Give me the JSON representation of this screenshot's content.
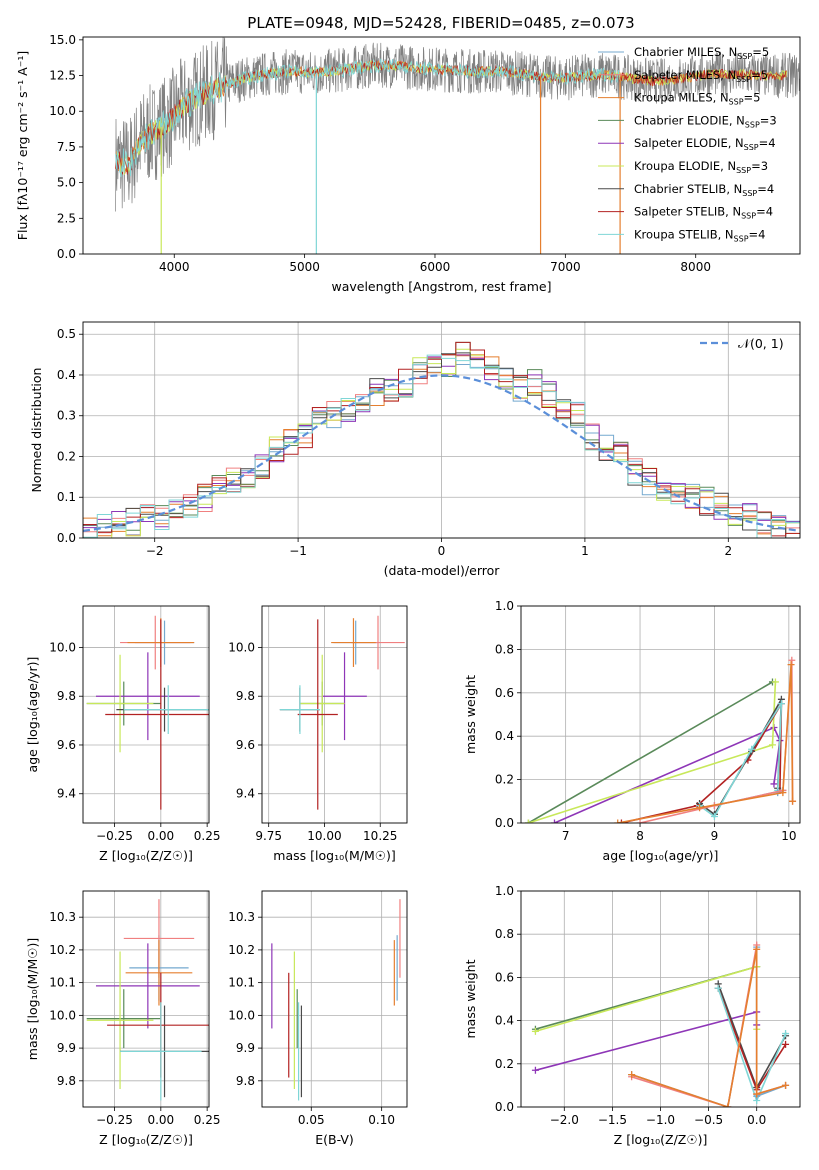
{
  "figure_title": "PLATE=0948, MJD=52428, FIBERID=0485, z=0.073",
  "colors": {
    "Chabrier MILES": "#74a9cf",
    "Salpeter MILES": "#f08080",
    "Kroupa MILES": "#e57f2f",
    "Chabrier ELODIE": "#5a8a5a",
    "Salpeter ELODIE": "#8e36b7",
    "Kroupa ELODIE": "#c8e85a",
    "Chabrier STELIB": "#4a4a4a",
    "Salpeter STELIB": "#b22222",
    "Kroupa STELIB": "#7fd6d6",
    "normal_curve": "#5b8fd9",
    "data_spectrum": "#808080"
  },
  "chart_data": [
    {
      "id": "spectrum",
      "type": "line",
      "title": "PLATE=0948, MJD=52428, FIBERID=0485, z=0.073",
      "xlabel": "wavelength [Angstrom, rest frame]",
      "ylabel": "Flux [fλ10⁻¹⁷ erg cm⁻² s⁻¹ A⁻¹]",
      "xlim": [
        3300,
        8800
      ],
      "ylim": [
        0,
        15.2
      ],
      "xticks": [
        4000,
        5000,
        6000,
        7000,
        8000
      ],
      "yticks": [
        0.0,
        2.5,
        5.0,
        7.5,
        10.0,
        12.5,
        15.0
      ],
      "yticklabels": [
        "0.0",
        "2.5",
        "5.0",
        "7.5",
        "10.0",
        "12.5",
        "15.0"
      ],
      "grid": false,
      "legend_position": "top-right",
      "legend": [
        {
          "model": "Chabrier MILES",
          "label": "Chabrier MILES, N",
          "sub": "SSP",
          "tail": "=5"
        },
        {
          "model": "Salpeter MILES",
          "label": "Salpeter MILES, N",
          "sub": "SSP",
          "tail": "=5"
        },
        {
          "model": "Kroupa MILES",
          "label": "Kroupa MILES, N",
          "sub": "SSP",
          "tail": "=5"
        },
        {
          "model": "Chabrier ELODIE",
          "label": "Chabrier ELODIE, N",
          "sub": "SSP",
          "tail": "=3"
        },
        {
          "model": "Salpeter ELODIE",
          "label": "Salpeter ELODIE, N",
          "sub": "SSP",
          "tail": "=4"
        },
        {
          "model": "Kroupa ELODIE",
          "label": "Kroupa ELODIE, N",
          "sub": "SSP",
          "tail": "=3"
        },
        {
          "model": "Chabrier STELIB",
          "label": "Chabrier STELIB, N",
          "sub": "SSP",
          "tail": "=4"
        },
        {
          "model": "Salpeter STELIB",
          "label": "Salpeter STELIB, N",
          "sub": "SSP",
          "tail": "=4"
        },
        {
          "model": "Kroupa STELIB",
          "label": "Kroupa STELIB, N",
          "sub": "SSP",
          "tail": "=4"
        }
      ],
      "continuum": {
        "x": [
          3550,
          3650,
          3750,
          3850,
          3950,
          4050,
          4150,
          4300,
          4500,
          4700,
          4900,
          5100,
          5300,
          5500,
          5700,
          5900,
          6100,
          6300,
          6500,
          6700,
          6900,
          7100,
          7300,
          7500,
          7700,
          7900,
          8100,
          8300,
          8500,
          8700
        ],
        "y": [
          6.5,
          6.2,
          8.0,
          8.6,
          9.2,
          10.2,
          10.8,
          11.5,
          12.2,
          12.6,
          12.8,
          12.7,
          12.9,
          13.2,
          13.2,
          13.0,
          12.9,
          12.8,
          12.8,
          12.6,
          12.3,
          12.4,
          12.6,
          12.3,
          12.1,
          12.3,
          12.6,
          12.6,
          12.5,
          12.5
        ]
      },
      "absorption_lines": [
        3900,
        5090,
        6810,
        7420
      ]
    },
    {
      "id": "residuals",
      "type": "step",
      "xlabel": "(data-model)/error",
      "ylabel": "Normed distribution",
      "xlim": [
        -2.5,
        2.5
      ],
      "ylim": [
        0,
        0.53
      ],
      "xticks": [
        -2,
        -1,
        0,
        1,
        2
      ],
      "xticklabels": [
        "−2",
        "−1",
        "0",
        "1",
        "2"
      ],
      "yticks": [
        0.0,
        0.1,
        0.2,
        0.3,
        0.4,
        0.5
      ],
      "yticklabels": [
        "0.0",
        "0.1",
        "0.2",
        "0.3",
        "0.4",
        "0.5"
      ],
      "grid": true,
      "legend_position": "top-right",
      "legend": [
        {
          "label": "𝒩(0, 1)",
          "style": "dashed"
        }
      ],
      "bin_edges": [
        -2.5,
        -2.4,
        -2.3,
        -2.2,
        -2.1,
        -2.0,
        -1.9,
        -1.8,
        -1.7,
        -1.6,
        -1.5,
        -1.4,
        -1.3,
        -1.2,
        -1.1,
        -1.0,
        -0.9,
        -0.8,
        -0.7,
        -0.6,
        -0.5,
        -0.4,
        -0.3,
        -0.2,
        -0.1,
        0.0,
        0.1,
        0.2,
        0.3,
        0.4,
        0.5,
        0.6,
        0.7,
        0.8,
        0.9,
        1.0,
        1.1,
        1.2,
        1.3,
        1.4,
        1.5,
        1.6,
        1.7,
        1.8,
        1.9,
        2.0,
        2.1,
        2.2,
        2.3,
        2.4,
        2.5
      ],
      "series_base": [
        0.02,
        0.03,
        0.04,
        0.04,
        0.05,
        0.05,
        0.06,
        0.08,
        0.1,
        0.13,
        0.14,
        0.15,
        0.18,
        0.22,
        0.24,
        0.25,
        0.29,
        0.3,
        0.31,
        0.33,
        0.36,
        0.37,
        0.38,
        0.41,
        0.42,
        0.43,
        0.46,
        0.44,
        0.41,
        0.4,
        0.37,
        0.38,
        0.35,
        0.31,
        0.3,
        0.25,
        0.22,
        0.2,
        0.16,
        0.14,
        0.12,
        0.11,
        0.1,
        0.09,
        0.08,
        0.06,
        0.05,
        0.03,
        0.02,
        0.02
      ],
      "normal_curve": {
        "mean": 0,
        "sigma": 1
      }
    },
    {
      "id": "age-vs-Z",
      "type": "errorbar",
      "xlabel": "Z [log₁₀(Z/Z☉)]",
      "ylabel": "age  [log₁₀(age/yr)]",
      "xlim": [
        -0.42,
        0.26
      ],
      "ylim": [
        9.28,
        10.17
      ],
      "xticks": [
        -0.25,
        0.0,
        0.25
      ],
      "xticklabels": [
        "−0.25",
        "0.00",
        "0.25"
      ],
      "yticks": [
        9.4,
        9.6,
        9.8,
        10.0
      ],
      "yticklabels": [
        "9.4",
        "9.6",
        "9.8",
        "10.0"
      ],
      "grid": true,
      "points": [
        {
          "model": "Chabrier MILES",
          "x": 0.02,
          "xerr": 0.16,
          "y": 10.02,
          "yerr": 0.09
        },
        {
          "model": "Salpeter MILES",
          "x": -0.03,
          "xerr": 0.19,
          "y": 10.02,
          "yerr": 0.11
        },
        {
          "model": "Kroupa MILES",
          "x": 0.0,
          "xerr": 0.18,
          "y": 10.02,
          "yerr": 0.1
        },
        {
          "model": "Chabrier ELODIE",
          "x": -0.2,
          "xerr": 0.2,
          "y": 9.77,
          "yerr": 0.09
        },
        {
          "model": "Salpeter ELODIE",
          "x": -0.07,
          "xerr": 0.28,
          "y": 9.8,
          "yerr": 0.18
        },
        {
          "model": "Kroupa ELODIE",
          "x": -0.22,
          "xerr": 0.18,
          "y": 9.77,
          "yerr": 0.2
        },
        {
          "model": "Chabrier STELIB",
          "x": 0.02,
          "xerr": 0.26,
          "y": 9.745,
          "yerr": 0.09
        },
        {
          "model": "Salpeter STELIB",
          "x": 0.0,
          "xerr": 0.3,
          "y": 9.725,
          "yerr": 0.39
        },
        {
          "model": "Kroupa STELIB",
          "x": 0.04,
          "xerr": 0.24,
          "y": 9.745,
          "yerr": 0.1
        }
      ]
    },
    {
      "id": "age-vs-mass",
      "type": "errorbar",
      "xlabel": "mass [log₁₀(M/M☉)]",
      "ylabel": "",
      "xlim": [
        9.72,
        10.37
      ],
      "ylim": [
        9.28,
        10.17
      ],
      "xticks": [
        9.75,
        10.0,
        10.25
      ],
      "xticklabels": [
        "9.75",
        "10.00",
        "10.25"
      ],
      "yticks": [
        9.4,
        9.6,
        9.8,
        10.0
      ],
      "yticklabels": [
        "9.4",
        "9.6",
        "9.8",
        "10.0"
      ],
      "grid": true,
      "points": [
        {
          "model": "Chabrier MILES",
          "x": 10.14,
          "xerr": 0.1,
          "y": 10.02,
          "yerr": 0.09
        },
        {
          "model": "Salpeter MILES",
          "x": 10.24,
          "xerr": 0.12,
          "y": 10.02,
          "yerr": 0.11
        },
        {
          "model": "Kroupa MILES",
          "x": 10.13,
          "xerr": 0.1,
          "y": 10.02,
          "yerr": 0.1
        },
        {
          "model": "Chabrier ELODIE",
          "x": 9.99,
          "xerr": 0.1,
          "y": 9.77,
          "yerr": 0.09
        },
        {
          "model": "Salpeter ELODIE",
          "x": 10.09,
          "xerr": 0.1,
          "y": 9.8,
          "yerr": 0.18
        },
        {
          "model": "Kroupa ELODIE",
          "x": 9.99,
          "xerr": 0.1,
          "y": 9.77,
          "yerr": 0.2
        },
        {
          "model": "Chabrier STELIB",
          "x": 9.89,
          "xerr": 0.09,
          "y": 9.745,
          "yerr": 0.09
        },
        {
          "model": "Salpeter STELIB",
          "x": 9.97,
          "xerr": 0.09,
          "y": 9.725,
          "yerr": 0.39
        },
        {
          "model": "Kroupa STELIB",
          "x": 9.89,
          "xerr": 0.09,
          "y": 9.745,
          "yerr": 0.1
        }
      ]
    },
    {
      "id": "mass-weight-vs-age",
      "type": "line",
      "xlabel": "age  [log₁₀(age/yr)]",
      "ylabel": "mass weight",
      "xlim": [
        6.4,
        10.15
      ],
      "ylim": [
        0,
        1.0
      ],
      "xticks": [
        7,
        8,
        9,
        10
      ],
      "xticklabels": [
        "7",
        "8",
        "9",
        "10"
      ],
      "yticks": [
        0.0,
        0.2,
        0.4,
        0.6,
        0.8,
        1.0
      ],
      "yticklabels": [
        "0.0",
        "0.2",
        "0.4",
        "0.6",
        "0.8",
        "1.0"
      ],
      "grid": true,
      "series": [
        {
          "model": "Chabrier ELODIE",
          "x": [
            6.5,
            9.78
          ],
          "y": [
            0.0,
            0.65
          ]
        },
        {
          "model": "Salpeter ELODIE",
          "x": [
            6.85,
            9.8,
            9.88,
            9.8
          ],
          "y": [
            0.0,
            0.44,
            0.38,
            0.18
          ]
        },
        {
          "model": "Kroupa ELODIE",
          "x": [
            6.5,
            9.78,
            9.82
          ],
          "y": [
            0.0,
            0.36,
            0.65
          ]
        },
        {
          "model": "Salpeter STELIB",
          "x": [
            7.75,
            8.77,
            9.45,
            9.9,
            9.88
          ],
          "y": [
            0.0,
            0.08,
            0.29,
            0.55,
            0.15
          ]
        },
        {
          "model": "Chabrier STELIB",
          "x": [
            8.8,
            9.0,
            9.5,
            9.9,
            9.85
          ],
          "y": [
            0.09,
            0.04,
            0.33,
            0.57,
            0.16
          ]
        },
        {
          "model": "Kroupa STELIB",
          "x": [
            8.8,
            9.0,
            9.5,
            9.9,
            9.85
          ],
          "y": [
            0.08,
            0.03,
            0.34,
            0.55,
            0.15
          ]
        },
        {
          "model": "Chabrier MILES",
          "x": [
            9.0,
            9.92,
            9.85
          ],
          "y": [
            0.08,
            0.15,
            0.14
          ]
        },
        {
          "model": "Salpeter MILES",
          "x": [
            8.0,
            9.0,
            9.92,
            10.04,
            10.05
          ],
          "y": [
            0.0,
            0.08,
            0.15,
            0.75,
            0.1
          ]
        },
        {
          "model": "Kroupa MILES",
          "x": [
            7.7,
            8.8,
            9.92,
            10.03,
            10.05
          ],
          "y": [
            0.0,
            0.07,
            0.14,
            0.73,
            0.1
          ]
        }
      ]
    },
    {
      "id": "mass-vs-Z",
      "type": "errorbar",
      "xlabel": "Z [log₁₀(Z/Z☉)]",
      "ylabel": "mass [log₁₀(M/M☉)]",
      "xlim": [
        -0.42,
        0.26
      ],
      "ylim": [
        9.72,
        10.38
      ],
      "xticks": [
        -0.25,
        0.0,
        0.25
      ],
      "xticklabels": [
        "−0.25",
        "0.00",
        "0.25"
      ],
      "yticks": [
        9.8,
        9.9,
        10.0,
        10.1,
        10.2,
        10.3
      ],
      "yticklabels": [
        "9.8",
        "9.9",
        "10.0",
        "10.1",
        "10.2",
        "10.3"
      ],
      "grid": true,
      "points": [
        {
          "model": "Chabrier MILES",
          "x": -0.01,
          "xerr": 0.16,
          "y": 10.145,
          "yerr": 0.1
        },
        {
          "model": "Salpeter MILES",
          "x": -0.01,
          "xerr": 0.19,
          "y": 10.235,
          "yerr": 0.12
        },
        {
          "model": "Kroupa MILES",
          "x": -0.01,
          "xerr": 0.18,
          "y": 10.13,
          "yerr": 0.1
        },
        {
          "model": "Chabrier ELODIE",
          "x": -0.2,
          "xerr": 0.2,
          "y": 9.99,
          "yerr": 0.09
        },
        {
          "model": "Salpeter ELODIE",
          "x": -0.07,
          "xerr": 0.28,
          "y": 10.09,
          "yerr": 0.13
        },
        {
          "model": "Kroupa ELODIE",
          "x": -0.22,
          "xerr": 0.18,
          "y": 9.985,
          "yerr": 0.21
        },
        {
          "model": "Chabrier STELIB",
          "x": 0.02,
          "xerr": 0.24,
          "y": 9.89,
          "yerr": 0.14
        },
        {
          "model": "Salpeter STELIB",
          "x": 0.0,
          "xerr": 0.29,
          "y": 9.97,
          "yerr": 0.16
        },
        {
          "model": "Kroupa STELIB",
          "x": 0.0,
          "xerr": 0.22,
          "y": 9.89,
          "yerr": 0.15
        }
      ]
    },
    {
      "id": "mass-vs-ebv",
      "type": "errorbar",
      "xlabel": "E(B-V)",
      "ylabel": "",
      "xlim": [
        0.015,
        0.118
      ],
      "ylim": [
        9.72,
        10.38
      ],
      "xticks": [
        0.05,
        0.1
      ],
      "xticklabels": [
        "0.05",
        "0.10"
      ],
      "yticks": [
        9.8,
        9.9,
        10.0,
        10.1,
        10.2,
        10.3
      ],
      "yticklabels": [
        "9.8",
        "9.9",
        "10.0",
        "10.1",
        "10.2",
        "10.3"
      ],
      "grid": true,
      "points": [
        {
          "model": "Chabrier MILES",
          "x": 0.111,
          "y": 10.145,
          "yerr": 0.1
        },
        {
          "model": "Salpeter MILES",
          "x": 0.113,
          "y": 10.235,
          "yerr": 0.12
        },
        {
          "model": "Kroupa MILES",
          "x": 0.109,
          "y": 10.13,
          "yerr": 0.1
        },
        {
          "model": "Chabrier ELODIE",
          "x": 0.04,
          "y": 9.99,
          "yerr": 0.09
        },
        {
          "model": "Salpeter ELODIE",
          "x": 0.022,
          "y": 10.09,
          "yerr": 0.13
        },
        {
          "model": "Kroupa ELODIE",
          "x": 0.038,
          "y": 9.985,
          "yerr": 0.21
        },
        {
          "model": "Chabrier STELIB",
          "x": 0.043,
          "y": 9.89,
          "yerr": 0.14
        },
        {
          "model": "Salpeter STELIB",
          "x": 0.034,
          "y": 9.97,
          "yerr": 0.16
        },
        {
          "model": "Kroupa STELIB",
          "x": 0.041,
          "y": 9.89,
          "yerr": 0.15
        }
      ]
    },
    {
      "id": "mass-weight-vs-Z",
      "type": "line",
      "xlabel": "Z [log₁₀(Z/Z☉)]",
      "ylabel": "mass weight",
      "xlim": [
        -2.45,
        0.45
      ],
      "ylim": [
        0,
        1.0
      ],
      "xticks": [
        -2.0,
        -1.5,
        -1.0,
        -0.5,
        0.0
      ],
      "xticklabels": [
        "−2.0",
        "−1.5",
        "−1.0",
        "−0.5",
        "0.0"
      ],
      "yticks": [
        0.0,
        0.2,
        0.4,
        0.6,
        0.8,
        1.0
      ],
      "yticklabels": [
        "0.0",
        "0.2",
        "0.4",
        "0.6",
        "0.8",
        "1.0"
      ],
      "grid": true,
      "series": [
        {
          "model": "Chabrier ELODIE",
          "x": [
            -2.3,
            0.0
          ],
          "y": [
            0.36,
            0.65
          ]
        },
        {
          "model": "Kroupa ELODIE",
          "x": [
            -2.3,
            0.0,
            0.0
          ],
          "y": [
            0.35,
            0.65,
            0.36
          ]
        },
        {
          "model": "Salpeter ELODIE",
          "x": [
            -2.3,
            0.0,
            0.0
          ],
          "y": [
            0.17,
            0.44,
            0.38
          ]
        },
        {
          "model": "Chabrier STELIB",
          "x": [
            -0.4,
            0.0,
            0.3
          ],
          "y": [
            0.57,
            0.09,
            0.33
          ]
        },
        {
          "model": "Salpeter STELIB",
          "x": [
            -0.4,
            0.0,
            0.3
          ],
          "y": [
            0.55,
            0.08,
            0.29
          ]
        },
        {
          "model": "Kroupa STELIB",
          "x": [
            -0.4,
            0.0,
            0.3
          ],
          "y": [
            0.55,
            0.03,
            0.34
          ]
        },
        {
          "model": "Chabrier MILES",
          "x": [
            -1.3,
            -0.3,
            0.0,
            0.0,
            0.3
          ],
          "y": [
            0.15,
            0.0,
            0.74,
            0.05,
            0.1
          ]
        },
        {
          "model": "Salpeter MILES",
          "x": [
            -1.3,
            -0.3,
            0.0,
            0.0,
            0.3
          ],
          "y": [
            0.14,
            0.0,
            0.75,
            0.06,
            0.1
          ]
        },
        {
          "model": "Kroupa MILES",
          "x": [
            -1.3,
            -0.3,
            0.0,
            0.0,
            0.3
          ],
          "y": [
            0.15,
            0.0,
            0.73,
            0.06,
            0.1
          ]
        }
      ]
    }
  ]
}
